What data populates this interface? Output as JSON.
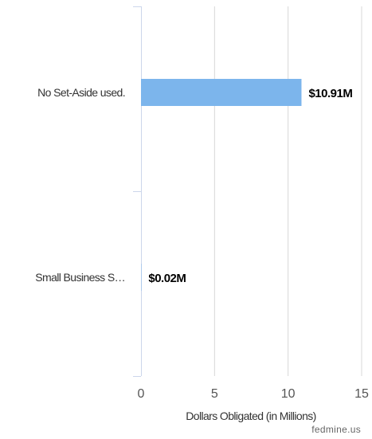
{
  "chart_data": {
    "type": "bar",
    "orientation": "horizontal",
    "categories": [
      "No Set-Aside used.",
      "Small Business S…"
    ],
    "values": [
      10.91,
      0.02
    ],
    "data_labels": [
      "$10.91M",
      "$0.02M"
    ],
    "xlabel": "Dollars Obligated (in Millions)",
    "ylabel": "",
    "xlim": [
      0,
      15
    ],
    "xticks": [
      0,
      5,
      10,
      15
    ],
    "grid": true,
    "legend": "none",
    "bar_color": "#7cb5ec",
    "credit": "fedmine.us"
  }
}
